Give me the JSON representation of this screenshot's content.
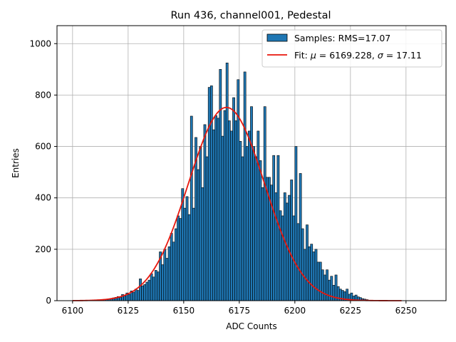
{
  "chart_data": {
    "type": "bar",
    "title": "Run 436, channel001, Pedestal",
    "xlabel": "ADC Counts",
    "ylabel": "Entries",
    "xlim": [
      6093,
      6268
    ],
    "ylim": [
      0,
      1070
    ],
    "xticks": [
      6100,
      6125,
      6150,
      6175,
      6200,
      6225,
      6250
    ],
    "yticks": [
      0,
      200,
      400,
      600,
      800,
      1000
    ],
    "grid": true,
    "legend_position": "top-right",
    "bin_start": 6110,
    "bin_width": 1,
    "series": [
      {
        "name": "Samples: RMS=17.07",
        "color": "#1f77b4",
        "values": [
          1,
          2,
          3,
          4,
          5,
          6,
          7,
          9,
          11,
          13,
          16,
          13,
          24,
          19,
          30,
          24,
          38,
          33,
          45,
          40,
          85,
          58,
          63,
          72,
          80,
          105,
          92,
          118,
          112,
          190,
          140,
          200,
          165,
          210,
          262,
          228,
          280,
          330,
          320,
          436,
          360,
          405,
          335,
          718,
          360,
          635,
          510,
          600,
          440,
          685,
          560,
          830,
          836,
          665,
          720,
          710,
          900,
          640,
          740,
          925,
          700,
          660,
          790,
          700,
          860,
          620,
          560,
          890,
          600,
          660,
          755,
          600,
          560,
          660,
          545,
          440,
          755,
          480,
          480,
          450,
          565,
          420,
          565,
          350,
          330,
          420,
          380,
          410,
          470,
          330,
          600,
          300,
          495,
          280,
          200,
          295,
          210,
          220,
          190,
          200,
          150,
          150,
          120,
          100,
          120,
          80,
          95,
          60,
          100,
          55,
          45,
          40,
          35,
          45,
          25,
          30,
          18,
          22,
          15,
          12,
          8,
          6,
          4,
          2,
          1
        ]
      }
    ],
    "fit": {
      "label_text": "Fit: ",
      "label_mu": "μ",
      "label_mu_value": " = 6169.228, ",
      "label_sigma": "σ",
      "label_sigma_value": " = 17.11",
      "mu": 6169.228,
      "sigma": 17.11,
      "peak": 752,
      "x_range": [
        6100,
        6248
      ],
      "color": "#e8160c"
    }
  }
}
